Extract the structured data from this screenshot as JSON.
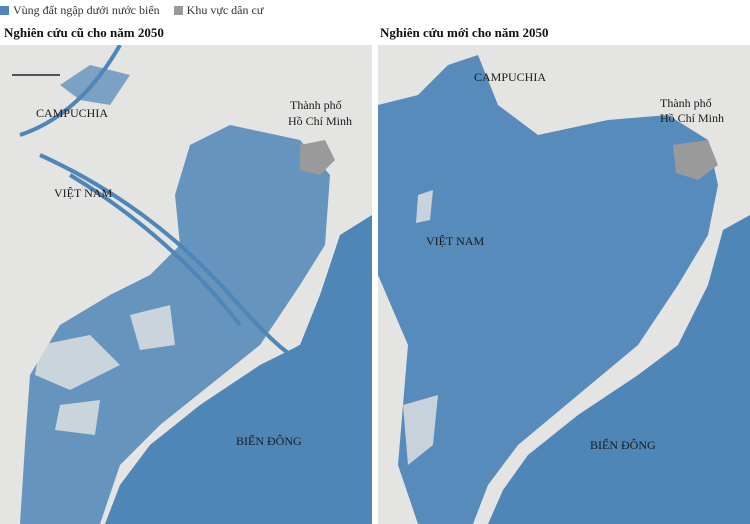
{
  "legend": [
    {
      "label": "Vùng đất ngập dưới nước biển",
      "color": "#4f86b8"
    },
    {
      "label": "Khu vực dân cư",
      "color": "#9a9a9a"
    }
  ],
  "panels": [
    {
      "title": "Nghiên cứu cũ cho năm 2050",
      "labels": [
        "CAMPUCHIA",
        "Thành phố",
        "Hồ Chí Minh",
        "VIỆT NAM",
        "BIỂN ĐÔNG"
      ]
    },
    {
      "title": "Nghiên cứu mới cho năm 2050",
      "labels": [
        "CAMPUCHIA",
        "Thành phố",
        "Hồ Chí Minh",
        "VIỆT NAM",
        "BIỂN ĐÔNG"
      ]
    }
  ]
}
